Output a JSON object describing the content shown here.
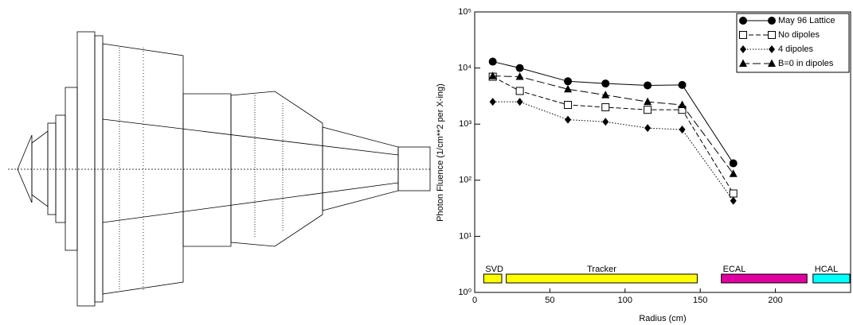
{
  "chart_data": {
    "type": "line",
    "log_y": true,
    "xlabel": "Radius (cm)",
    "ylabel": "Photon Fluence (1/cm**2 per X-ing)",
    "xlim": [
      0,
      250
    ],
    "xticks": [
      0,
      50,
      100,
      150,
      200
    ],
    "ylim": [
      1,
      100000
    ],
    "yticks": [
      {
        "value": 1,
        "label": "10⁰"
      },
      {
        "value": 10,
        "label": "10¹"
      },
      {
        "value": 100,
        "label": "10²"
      },
      {
        "value": 1000,
        "label": "10³"
      },
      {
        "value": 10000,
        "label": "10⁴"
      },
      {
        "value": 100000,
        "label": "10⁵"
      }
    ],
    "legend": "upper right",
    "x": [
      12,
      30,
      62,
      87,
      115,
      138,
      172
    ],
    "series": [
      {
        "name": "May 96 Lattice",
        "color": "#000000",
        "line_style": "solid",
        "marker": "circle",
        "values": [
          13000,
          10000,
          5800,
          5300,
          4900,
          5000,
          200
        ]
      },
      {
        "name": "No dipoles",
        "color": "#000000",
        "line_style": "dashed",
        "marker": "square-open",
        "values": [
          7000,
          3900,
          2200,
          2000,
          1800,
          1800,
          58
        ]
      },
      {
        "name": "4 dipoles",
        "color": "#000000",
        "line_style": "dotted",
        "marker": "diamond",
        "values": [
          2500,
          2500,
          1200,
          1100,
          850,
          800,
          43
        ]
      },
      {
        "name": "B=0 in dipoles",
        "color": "#000000",
        "line_style": "longdash",
        "marker": "triangle",
        "values": [
          7200,
          7000,
          4200,
          3300,
          2500,
          2200,
          130
        ]
      }
    ],
    "regions": [
      {
        "label": "SVD",
        "start": 6,
        "end": 18,
        "color": "#ffff00"
      },
      {
        "label": "Tracker",
        "start": 21,
        "end": 148,
        "color": "#ffff00"
      },
      {
        "label": "ECAL",
        "start": 164,
        "end": 221,
        "color": "#e000a0"
      },
      {
        "label": "HCAL",
        "start": 225,
        "end": 250,
        "color": "#00ffff"
      }
    ]
  }
}
